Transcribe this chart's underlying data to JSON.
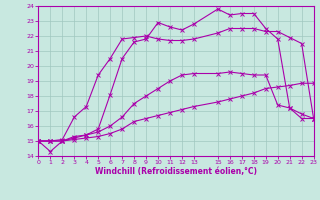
{
  "xlabel": "Windchill (Refroidissement éolien,°C)",
  "background_color": "#c8e8e0",
  "grid_color": "#a0c8c0",
  "line_color": "#aa00aa",
  "spine_color": "#aa00aa",
  "xlim": [
    0,
    23
  ],
  "ylim": [
    14,
    24
  ],
  "xticks": [
    0,
    1,
    2,
    3,
    4,
    5,
    6,
    7,
    8,
    9,
    10,
    11,
    12,
    13,
    15,
    16,
    17,
    18,
    19,
    20,
    21,
    22,
    23
  ],
  "yticks": [
    14,
    15,
    16,
    17,
    18,
    19,
    20,
    21,
    22,
    23,
    24
  ],
  "x": [
    0,
    1,
    2,
    3,
    4,
    5,
    6,
    7,
    8,
    9,
    10,
    11,
    12,
    13,
    15,
    16,
    17,
    18,
    19,
    20,
    21,
    22,
    23
  ],
  "series": [
    [
      15.0,
      14.3,
      15.0,
      15.1,
      15.2,
      15.3,
      15.5,
      15.8,
      16.3,
      16.5,
      16.7,
      16.9,
      17.1,
      17.3,
      17.6,
      17.8,
      18.0,
      18.2,
      18.5,
      18.6,
      18.7,
      18.85,
      18.85
    ],
    [
      15.0,
      15.0,
      15.0,
      15.2,
      15.4,
      15.6,
      16.0,
      16.6,
      17.5,
      18.0,
      18.5,
      19.0,
      19.4,
      19.5,
      19.5,
      19.6,
      19.5,
      19.4,
      19.4,
      17.4,
      17.2,
      16.8,
      16.5
    ],
    [
      15.0,
      15.0,
      15.1,
      16.6,
      17.3,
      19.4,
      20.5,
      21.8,
      21.9,
      22.0,
      21.8,
      21.7,
      21.7,
      21.8,
      22.2,
      22.5,
      22.5,
      22.5,
      22.3,
      22.3,
      21.9,
      21.5,
      16.5
    ],
    [
      15.0,
      15.0,
      15.0,
      15.3,
      15.4,
      15.8,
      18.1,
      20.5,
      21.6,
      21.8,
      22.9,
      22.6,
      22.4,
      22.8,
      23.8,
      23.4,
      23.5,
      23.5,
      22.5,
      21.8,
      17.2,
      16.5,
      16.5
    ]
  ],
  "xlabel_fontsize": 5.5,
  "tick_fontsize": 4.5
}
